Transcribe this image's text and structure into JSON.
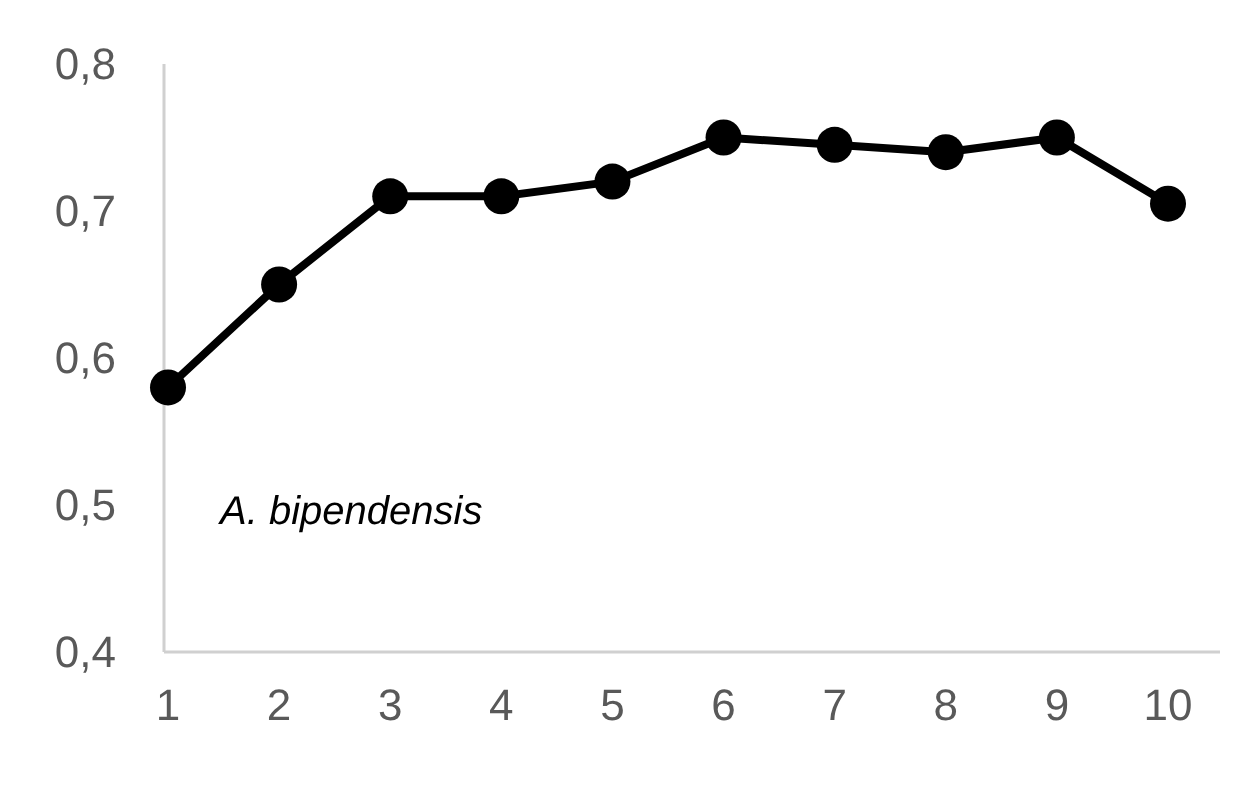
{
  "chart_data": {
    "type": "line",
    "categories": [
      "1",
      "2",
      "3",
      "4",
      "5",
      "6",
      "7",
      "8",
      "9",
      "10"
    ],
    "series": [
      {
        "color": "#000000",
        "values": [
          0.58,
          0.65,
          0.71,
          0.71,
          0.72,
          0.75,
          0.745,
          0.74,
          0.75,
          0.705
        ]
      }
    ],
    "ylim": [
      0.4,
      0.8
    ],
    "yticks": [
      {
        "value": 0.4,
        "label": "0,4"
      },
      {
        "value": 0.5,
        "label": "0,5"
      },
      {
        "value": 0.6,
        "label": "0,6"
      },
      {
        "value": 0.7,
        "label": "0,7"
      },
      {
        "value": 0.8,
        "label": "0,8"
      }
    ],
    "annotations": [
      "A. bipendensis"
    ],
    "marker": "circle",
    "line_style": "solid",
    "grid": false
  }
}
